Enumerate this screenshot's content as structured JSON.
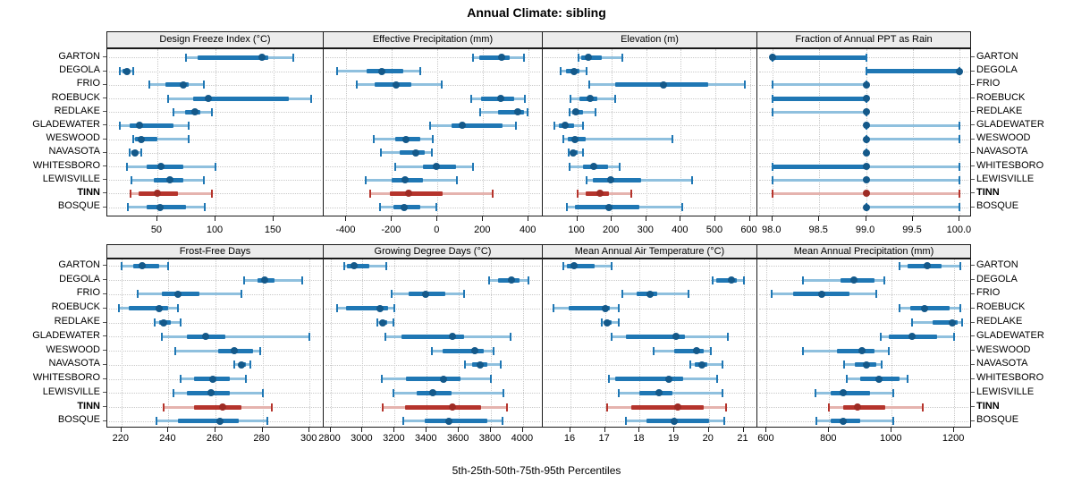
{
  "title": "Annual Climate: sibling",
  "caption": "5th-25th-50th-75th-95th Percentiles",
  "colors": {
    "series": "#1f77b4",
    "series_dot": "#14598a",
    "series_whisker": "#8fc0de",
    "highlight": "#b5342c",
    "highlight_dot": "#9e2b24",
    "highlight_whisker": "#e5b3ae",
    "grid": "#c9c9c9",
    "header_bg": "#ececec",
    "border": "#1a1a1a"
  },
  "chart_data": {
    "type": "dotplot-percentiles",
    "percentile_labels": [
      "5th",
      "25th",
      "50th",
      "75th",
      "95th"
    ],
    "legend_note": "dot = median, thick bar = 25th-75th, thin line = 5th-95th",
    "highlight_row": "TINN",
    "rows": [
      "GARTON",
      "DEGOLA",
      "FRIO",
      "ROEBUCK",
      "REDLAKE",
      "GLADEWATER",
      "WESWOOD",
      "NAVASOTA",
      "WHITESBORO",
      "LEWISVILLE",
      "TINN",
      "BOSQUE"
    ],
    "panels": [
      {
        "title": "Design Freeze Index (°C)",
        "grid_row": 0,
        "grid_col": 0,
        "xlim": [
          7,
          193
        ],
        "ticks": [
          50,
          100,
          150
        ],
        "tick_labels": [
          "50",
          "100",
          "150"
        ],
        "values": {
          "GARTON": [
            75,
            85,
            140,
            145,
            167
          ],
          "DEGOLA": [
            18,
            20,
            24,
            26,
            29
          ],
          "FRIO": [
            43,
            57,
            72,
            77,
            90
          ],
          "ROEBUCK": [
            59,
            81,
            94,
            163,
            182
          ],
          "REDLAKE": [
            64,
            74,
            82,
            87,
            97
          ],
          "GLADEWATER": [
            18,
            26,
            35,
            64,
            77
          ],
          "WESWOOD": [
            29,
            31,
            36,
            50,
            77
          ],
          "NAVASOTA": [
            26,
            28,
            31,
            33,
            36
          ],
          "WHITESBORO": [
            24,
            41,
            53,
            72,
            100
          ],
          "LEWISVILLE": [
            28,
            47,
            61,
            72,
            90
          ],
          "TINN": [
            27,
            34,
            50,
            68,
            97
          ],
          "BOSQUE": [
            25,
            41,
            52,
            75,
            91
          ]
        }
      },
      {
        "title": "Effective Precipitation (mm)",
        "grid_row": 0,
        "grid_col": 1,
        "xlim": [
          -500,
          462
        ],
        "ticks": [
          -400,
          -200,
          0,
          200,
          400
        ],
        "tick_labels": [
          "-400",
          "-200",
          "0",
          "200",
          "400"
        ],
        "values": {
          "GARTON": [
            157,
            185,
            280,
            315,
            378
          ],
          "DEGOLA": [
            -440,
            -310,
            -245,
            -150,
            -76
          ],
          "FRIO": [
            -353,
            -278,
            -183,
            -115,
            20
          ],
          "ROEBUCK": [
            146,
            192,
            277,
            336,
            384
          ],
          "REDLAKE": [
            189,
            264,
            353,
            381,
            394
          ],
          "GLADEWATER": [
            -33,
            60,
            107,
            286,
            346
          ],
          "WESWOOD": [
            -281,
            -187,
            -137,
            -76,
            -20
          ],
          "NAVASOTA": [
            -249,
            -167,
            -96,
            -56,
            -26
          ],
          "WHITESBORO": [
            -187,
            -63,
            -4,
            81,
            157
          ],
          "LEWISVILLE": [
            -314,
            -200,
            -141,
            -63,
            85
          ],
          "TINN": [
            -294,
            -209,
            -128,
            22,
            242
          ],
          "BOSQUE": [
            -252,
            -194,
            -145,
            -76,
            -4
          ]
        }
      },
      {
        "title": "Elevation (m)",
        "grid_row": 0,
        "grid_col": 2,
        "xlim": [
          0,
          622
        ],
        "ticks": [
          100,
          200,
          300,
          400,
          500,
          600
        ],
        "tick_labels": [
          "100",
          "200",
          "300",
          "400",
          "500",
          "600"
        ],
        "values": {
          "GARTON": [
            104,
            111,
            133,
            172,
            230
          ],
          "DEGOLA": [
            51,
            68,
            90,
            107,
            126
          ],
          "FRIO": [
            134,
            209,
            350,
            480,
            586
          ],
          "ROEBUCK": [
            81,
            107,
            137,
            159,
            209
          ],
          "REDLAKE": [
            77,
            85,
            97,
            116,
            152
          ],
          "GLADEWATER": [
            33,
            46,
            66,
            90,
            117
          ],
          "WESWOOD": [
            59,
            72,
            94,
            124,
            375
          ],
          "NAVASOTA": [
            74,
            80,
            88,
            100,
            117
          ],
          "WHITESBORO": [
            79,
            116,
            148,
            189,
            224
          ],
          "LEWISVILLE": [
            127,
            146,
            198,
            284,
            433
          ],
          "TINN": [
            101,
            124,
            165,
            193,
            256
          ],
          "BOSQUE": [
            71,
            94,
            191,
            280,
            405
          ]
        }
      },
      {
        "title": "Fraction of Annual PPT as Rain",
        "grid_row": 0,
        "grid_col": 3,
        "xlim": [
          97.84,
          100.12
        ],
        "ticks": [
          98.0,
          98.5,
          99.0,
          99.5,
          100.0
        ],
        "tick_labels": [
          "98.0",
          "98.5",
          "99.0",
          "99.5",
          "100.0"
        ],
        "values": {
          "GARTON": [
            98,
            98,
            98,
            99,
            99
          ],
          "DEGOLA": [
            99,
            99,
            100,
            100,
            100
          ],
          "FRIO": [
            98,
            99,
            99,
            99,
            99
          ],
          "ROEBUCK": [
            98,
            98,
            99,
            99,
            99
          ],
          "REDLAKE": [
            98,
            99,
            99,
            99,
            99
          ],
          "GLADEWATER": [
            99,
            99,
            99,
            99,
            100
          ],
          "WESWOOD": [
            99,
            99,
            99,
            99,
            100
          ],
          "NAVASOTA": [
            99,
            99,
            99,
            99,
            99
          ],
          "WHITESBORO": [
            98,
            98,
            99,
            99,
            100
          ],
          "LEWISVILLE": [
            98,
            99,
            99,
            99,
            100
          ],
          "TINN": [
            98,
            99,
            99,
            99,
            100
          ],
          "BOSQUE": [
            99,
            99,
            99,
            99,
            100
          ]
        }
      },
      {
        "title": "Frost-Free Days",
        "grid_row": 1,
        "grid_col": 0,
        "xlim": [
          214,
          306
        ],
        "ticks": [
          220,
          240,
          260,
          280,
          300
        ],
        "tick_labels": [
          "220",
          "240",
          "260",
          "280",
          "300"
        ],
        "values": {
          "GARTON": [
            220,
            225,
            229,
            236,
            240
          ],
          "DEGOLA": [
            272,
            278,
            281,
            285,
            297
          ],
          "FRIO": [
            227,
            237,
            244,
            253,
            271
          ],
          "ROEBUCK": [
            219,
            223,
            236,
            240,
            244
          ],
          "REDLAKE": [
            234,
            236,
            238,
            241,
            245
          ],
          "GLADEWATER": [
            237,
            248,
            256,
            264,
            300
          ],
          "WESWOOD": [
            243,
            261,
            268,
            276,
            279
          ],
          "NAVASOTA": [
            268,
            270,
            271,
            273,
            275
          ],
          "WHITESBORO": [
            245,
            251,
            259,
            266,
            273
          ],
          "LEWISVILLE": [
            242,
            248,
            258,
            266,
            280
          ],
          "TINN": [
            238,
            251,
            263,
            271,
            284
          ],
          "BOSQUE": [
            235,
            244,
            262,
            270,
            282
          ]
        }
      },
      {
        "title": "Growing Degree Days (°C)",
        "grid_row": 1,
        "grid_col": 1,
        "xlim": [
          2758,
          4123
        ],
        "ticks": [
          2800,
          3000,
          3200,
          3400,
          3600,
          3800,
          4000
        ],
        "tick_labels": [
          "2800",
          "3000",
          "3200",
          "3400",
          "3600",
          "3800",
          "4000"
        ],
        "values": {
          "GARTON": [
            2885,
            2905,
            2950,
            3040,
            3150
          ],
          "DEGOLA": [
            3790,
            3845,
            3930,
            3980,
            4035
          ],
          "FRIO": [
            3180,
            3285,
            3395,
            3515,
            3630
          ],
          "ROEBUCK": [
            2843,
            2895,
            3108,
            3160,
            3200
          ],
          "REDLAKE": [
            3090,
            3110,
            3127,
            3155,
            3190
          ],
          "GLADEWATER": [
            3145,
            3240,
            3563,
            3635,
            3925
          ],
          "WESWOOD": [
            3430,
            3500,
            3700,
            3755,
            3815
          ],
          "NAVASOTA": [
            3637,
            3685,
            3735,
            3775,
            3860
          ],
          "WHITESBORO": [
            3120,
            3270,
            3505,
            3610,
            3800
          ],
          "LEWISVILLE": [
            3190,
            3340,
            3440,
            3555,
            3880
          ],
          "TINN": [
            3125,
            3265,
            3560,
            3740,
            3900
          ],
          "BOSQUE": [
            3255,
            3385,
            3540,
            3775,
            3875
          ]
        }
      },
      {
        "title": "Mean Annual Air Temperature (°C)",
        "grid_row": 1,
        "grid_col": 2,
        "xlim": [
          15.2,
          21.4
        ],
        "ticks": [
          16,
          17,
          18,
          19,
          20,
          21
        ],
        "tick_labels": [
          "16",
          "17",
          "18",
          "19",
          "20",
          "21"
        ],
        "values": {
          "GARTON": [
            15.8,
            15.9,
            16.1,
            16.7,
            17.2
          ],
          "DEGOLA": [
            20.1,
            20.2,
            20.65,
            20.8,
            21.0
          ],
          "FRIO": [
            17.5,
            17.9,
            18.3,
            18.5,
            19.4
          ],
          "ROEBUCK": [
            15.5,
            15.95,
            17.0,
            17.15,
            17.4
          ],
          "REDLAKE": [
            16.9,
            17.0,
            17.05,
            17.2,
            17.4
          ],
          "GLADEWATER": [
            17.2,
            17.6,
            19.05,
            19.3,
            20.55
          ],
          "WESWOOD": [
            18.4,
            19.0,
            19.65,
            19.85,
            20.05
          ],
          "NAVASOTA": [
            19.45,
            19.6,
            19.8,
            19.95,
            20.4
          ],
          "WHITESBORO": [
            17.1,
            17.3,
            18.85,
            19.25,
            20.25
          ],
          "LEWISVILLE": [
            17.4,
            18.0,
            18.55,
            18.95,
            20.4
          ],
          "TINN": [
            17.05,
            17.75,
            19.1,
            19.85,
            20.5
          ],
          "BOSQUE": [
            17.6,
            18.2,
            19.0,
            20.0,
            20.45
          ]
        }
      },
      {
        "title": "Mean Annual Precipitation (mm)",
        "grid_row": 1,
        "grid_col": 3,
        "xlim": [
          570,
          1254
        ],
        "ticks": [
          600,
          800,
          1000,
          1200
        ],
        "tick_labels": [
          "600",
          "800",
          "1000",
          "1200"
        ],
        "values": {
          "GARTON": [
            1025,
            1050,
            1115,
            1160,
            1220
          ],
          "DEGOLA": [
            715,
            835,
            880,
            945,
            975
          ],
          "FRIO": [
            615,
            685,
            775,
            865,
            950
          ],
          "ROEBUCK": [
            1025,
            1060,
            1105,
            1185,
            1220
          ],
          "REDLAKE": [
            1065,
            1130,
            1195,
            1210,
            1225
          ],
          "GLADEWATER": [
            965,
            990,
            1065,
            1145,
            1200
          ],
          "WESWOOD": [
            715,
            825,
            905,
            945,
            990
          ],
          "NAVASOTA": [
            848,
            883,
            920,
            950,
            967
          ],
          "WHITESBORO": [
            855,
            900,
            960,
            1025,
            1050
          ],
          "LEWISVILLE": [
            755,
            805,
            845,
            930,
            1005
          ],
          "TINN": [
            800,
            845,
            890,
            980,
            1100
          ],
          "BOSQUE": [
            760,
            805,
            845,
            900,
            1005
          ]
        }
      }
    ]
  }
}
